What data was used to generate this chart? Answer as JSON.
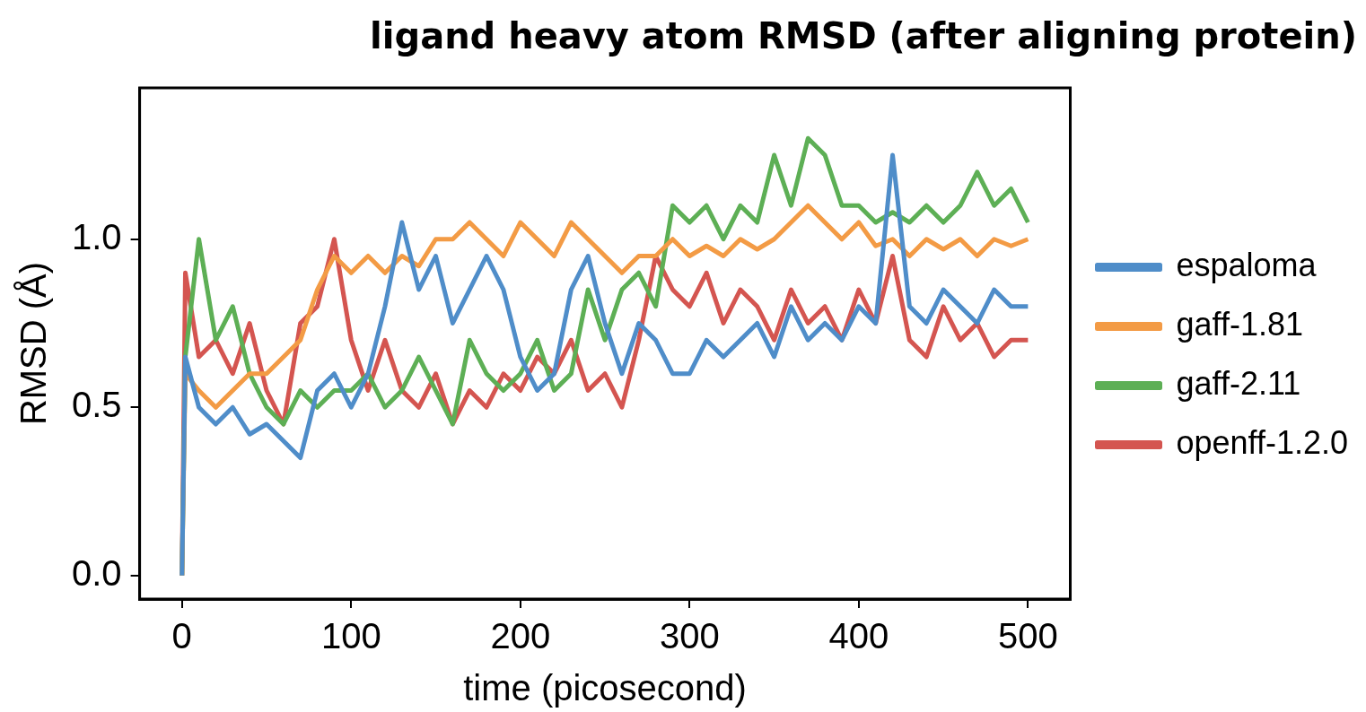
{
  "chart_data": {
    "type": "line",
    "title": "ligand heavy atom RMSD (after aligning protein)",
    "xlabel": "time (picosecond)",
    "ylabel": "RMSD (Å)",
    "x": [
      0,
      2,
      10,
      20,
      30,
      40,
      50,
      60,
      70,
      80,
      90,
      100,
      110,
      120,
      130,
      140,
      150,
      160,
      170,
      180,
      190,
      200,
      210,
      220,
      230,
      240,
      250,
      260,
      270,
      280,
      290,
      300,
      310,
      320,
      330,
      340,
      350,
      360,
      370,
      380,
      390,
      400,
      410,
      420,
      430,
      440,
      450,
      460,
      470,
      480,
      490,
      500
    ],
    "series": [
      {
        "name": "espaloma",
        "color": "#4f8dc9",
        "values": [
          0,
          0.65,
          0.5,
          0.45,
          0.5,
          0.42,
          0.45,
          0.4,
          0.35,
          0.55,
          0.6,
          0.5,
          0.6,
          0.8,
          1.05,
          0.85,
          0.95,
          0.75,
          0.85,
          0.95,
          0.85,
          0.65,
          0.55,
          0.6,
          0.85,
          0.95,
          0.75,
          0.6,
          0.75,
          0.7,
          0.6,
          0.6,
          0.7,
          0.65,
          0.7,
          0.75,
          0.65,
          0.8,
          0.7,
          0.75,
          0.7,
          0.8,
          0.75,
          1.25,
          0.8,
          0.75,
          0.85,
          0.8,
          0.75,
          0.85,
          0.8,
          0.8
        ]
      },
      {
        "name": "gaff-1.81",
        "color": "#f39b45",
        "values": [
          0,
          0.6,
          0.55,
          0.5,
          0.55,
          0.6,
          0.6,
          0.65,
          0.7,
          0.85,
          0.95,
          0.9,
          0.95,
          0.9,
          0.95,
          0.92,
          1.0,
          1.0,
          1.05,
          1.0,
          0.95,
          1.05,
          1.0,
          0.95,
          1.05,
          1.0,
          0.95,
          0.9,
          0.95,
          0.95,
          1.0,
          0.95,
          0.98,
          0.95,
          1.0,
          0.97,
          1.0,
          1.05,
          1.1,
          1.05,
          1.0,
          1.05,
          0.98,
          1.0,
          0.95,
          1.0,
          0.97,
          1.0,
          0.95,
          1.0,
          0.98,
          1.0
        ]
      },
      {
        "name": "gaff-2.11",
        "color": "#5daf55",
        "values": [
          0,
          0.65,
          1.0,
          0.7,
          0.8,
          0.6,
          0.5,
          0.45,
          0.55,
          0.5,
          0.55,
          0.55,
          0.6,
          0.5,
          0.55,
          0.65,
          0.55,
          0.45,
          0.7,
          0.6,
          0.55,
          0.6,
          0.7,
          0.55,
          0.6,
          0.85,
          0.7,
          0.85,
          0.9,
          0.8,
          1.1,
          1.05,
          1.1,
          1.0,
          1.1,
          1.05,
          1.25,
          1.1,
          1.3,
          1.25,
          1.1,
          1.1,
          1.05,
          1.08,
          1.05,
          1.1,
          1.05,
          1.1,
          1.2,
          1.1,
          1.15,
          1.05
        ]
      },
      {
        "name": "openff-1.2.0",
        "color": "#d45550",
        "values": [
          0,
          0.9,
          0.65,
          0.7,
          0.6,
          0.75,
          0.55,
          0.45,
          0.75,
          0.8,
          1.0,
          0.7,
          0.55,
          0.7,
          0.55,
          0.5,
          0.6,
          0.45,
          0.55,
          0.5,
          0.6,
          0.55,
          0.65,
          0.6,
          0.7,
          0.55,
          0.6,
          0.5,
          0.7,
          0.95,
          0.85,
          0.8,
          0.9,
          0.75,
          0.85,
          0.8,
          0.7,
          0.85,
          0.75,
          0.8,
          0.7,
          0.85,
          0.75,
          0.95,
          0.7,
          0.65,
          0.8,
          0.7,
          0.75,
          0.65,
          0.7,
          0.7
        ]
      }
    ],
    "xlim": [
      -25,
      525
    ],
    "ylim": [
      -0.07,
      1.45
    ],
    "xticks": [
      0,
      100,
      200,
      300,
      400,
      500
    ],
    "yticks": [
      {
        "value": 0,
        "label": "0.0"
      },
      0.5,
      {
        "value": 1,
        "label": "1.0"
      }
    ],
    "legend": "right"
  }
}
